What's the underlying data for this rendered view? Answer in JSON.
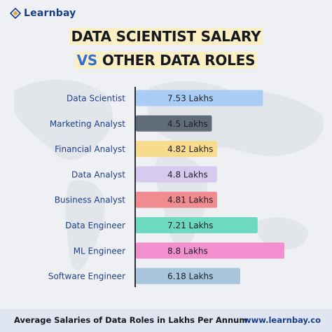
{
  "brand": {
    "name": "Learnbay",
    "url": "www.learnbay.co",
    "color": "#1a3d8a"
  },
  "title": {
    "line1": "DATA SCIENTIST SALARY",
    "vs": "VS",
    "line2_rest": " OTHER DATA ROLES"
  },
  "footer": {
    "caption": "Average Salaries of Data Roles in Lakhs Per Annum"
  },
  "chart_data": {
    "type": "bar",
    "orientation": "horizontal",
    "categories": [
      "Data Scientist",
      "Marketing Analyst",
      "Financial Analyst",
      "Data Analyst",
      "Business Analyst",
      "Data Engineer",
      "ML Engineer",
      "Software Engineer"
    ],
    "values": [
      7.53,
      4.5,
      4.82,
      4.8,
      4.81,
      7.21,
      8.8,
      6.18
    ],
    "labels": [
      "7.53 Lakhs",
      "4.5 Lakhs",
      "4.82 Lakhs",
      "4.8 Lakhs",
      "4.81 Lakhs",
      "7.21 Lakhs",
      "8.8 Lakhs",
      "6.18 Lakhs"
    ],
    "colors": [
      "#a9cdf5",
      "#5f6b76",
      "#f8dc8e",
      "#d6cbef",
      "#f08b8f",
      "#6cd9c0",
      "#f28fce",
      "#a7c5db"
    ],
    "category_color": "#1e3f8a",
    "grid": false,
    "legend": "none"
  }
}
